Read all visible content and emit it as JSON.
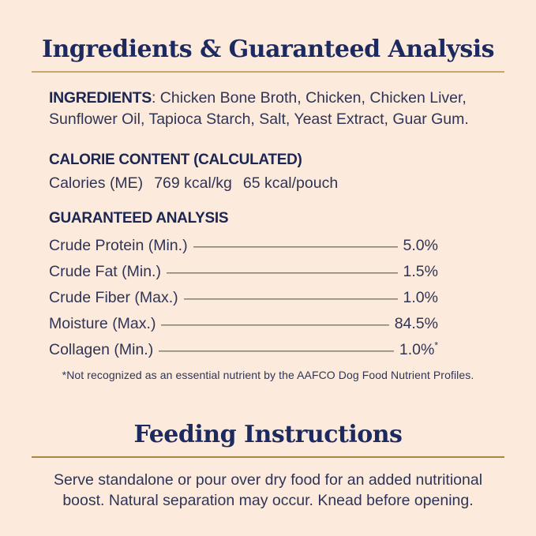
{
  "theme": {
    "background": "#FCEBDC",
    "title_navy": "#1D2A5F",
    "heading_navy": "#1B2653",
    "body_ink": "#2F3456",
    "rule_gold_top": "#C7A76C",
    "rule_gold_bottom": "#A9873E"
  },
  "ingredients_section": {
    "title": "Ingredients & Guaranteed Analysis",
    "ingredients_label": "INGREDIENTS",
    "ingredients_text": ": Chicken Bone Broth, Chicken, Chicken Liver, Sunflower Oil, Tapioca Starch, Salt, Yeast Extract, Guar Gum.",
    "calorie_heading": "CALORIE CONTENT (CALCULATED)",
    "calorie_label": "Calories (ME)",
    "calorie_per_kg": "769 kcal/kg",
    "calorie_per_pouch": "65 kcal/pouch",
    "analysis_heading": "GUARANTEED ANALYSIS",
    "analysis_rows": [
      {
        "label": "Crude Protein (Min.)",
        "value": "5.0%",
        "note_mark": ""
      },
      {
        "label": "Crude Fat (Min.)",
        "value": "1.5%",
        "note_mark": ""
      },
      {
        "label": "Crude Fiber (Max.)",
        "value": "1.0%",
        "note_mark": ""
      },
      {
        "label": "Moisture (Max.)",
        "value": "84.5%",
        "note_mark": ""
      },
      {
        "label": "Collagen (Min.)",
        "value": "1.0%",
        "note_mark": "*"
      }
    ],
    "footnote": "*Not recognized as an essential nutrient by the AAFCO Dog Food Nutrient Profiles."
  },
  "feeding_section": {
    "title": "Feeding Instructions",
    "body": "Serve standalone or pour over dry food for an added nutritional boost. Natural separation may occur. Knead before opening."
  }
}
